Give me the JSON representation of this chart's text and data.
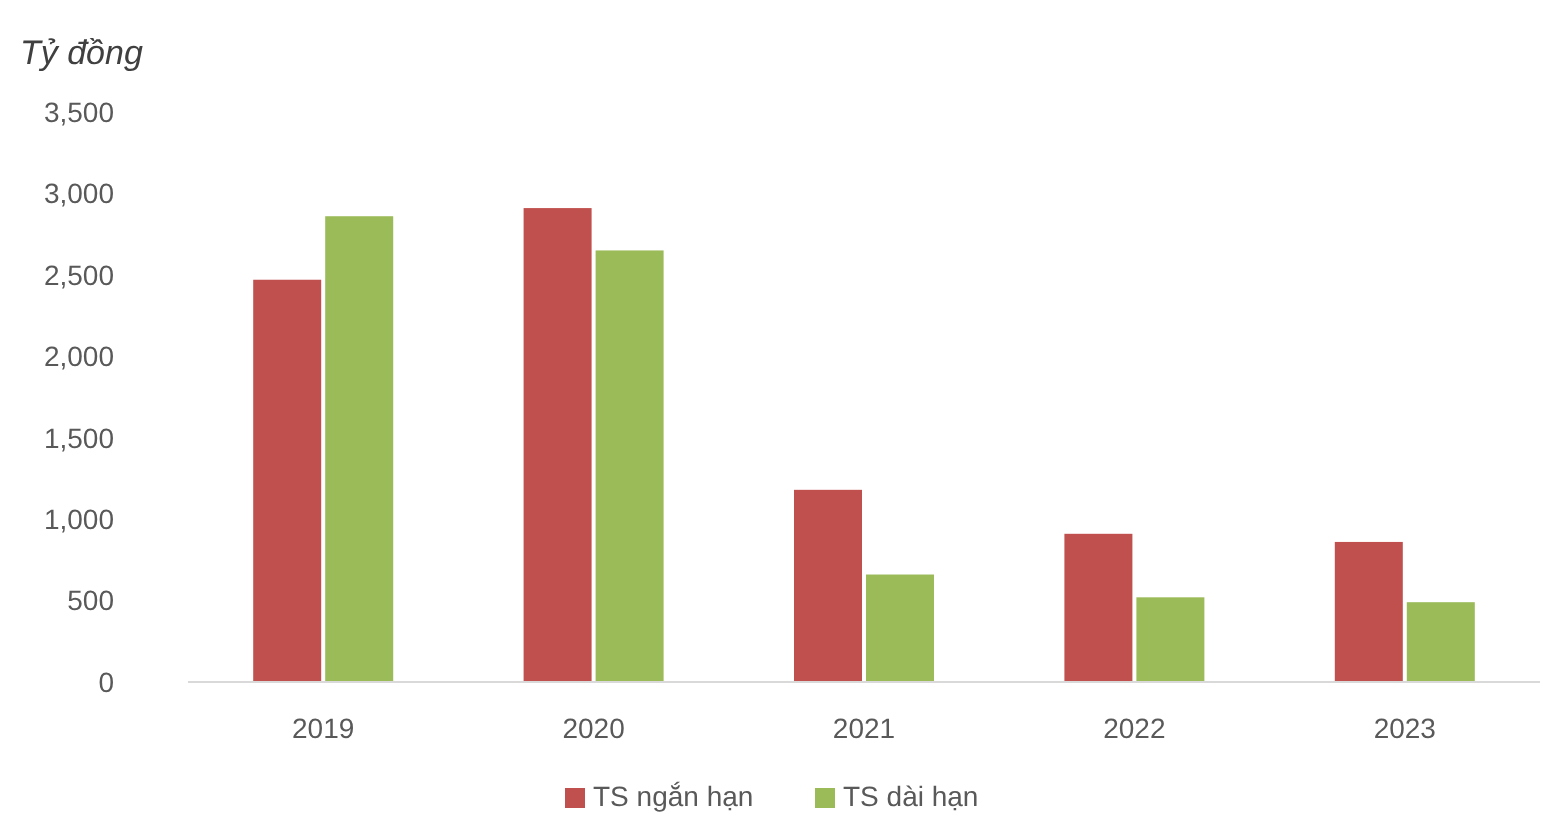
{
  "chart_data": {
    "type": "bar",
    "ylabel": "Tỷ đồng",
    "categories": [
      "2019",
      "2020",
      "2021",
      "2022",
      "2023"
    ],
    "series": [
      {
        "name": "TS ngắn hạn",
        "color": "#c0504d",
        "values": [
          2470,
          2910,
          1180,
          910,
          860
        ]
      },
      {
        "name": "TS dài hạn",
        "color": "#9bbb59",
        "values": [
          2860,
          2650,
          660,
          520,
          490
        ]
      }
    ],
    "ylim": [
      0,
      3500
    ],
    "yticks": [
      {
        "value": 0,
        "label": "0"
      },
      {
        "value": 500,
        "label": "500"
      },
      {
        "value": 1000,
        "label": "1,000"
      },
      {
        "value": 1500,
        "label": "1,500"
      },
      {
        "value": 2000,
        "label": "2,000"
      },
      {
        "value": 2500,
        "label": "2,500"
      },
      {
        "value": 3000,
        "label": "3,000"
      },
      {
        "value": 3500,
        "label": "3,500"
      }
    ],
    "grid": false,
    "legend": "bottom"
  }
}
